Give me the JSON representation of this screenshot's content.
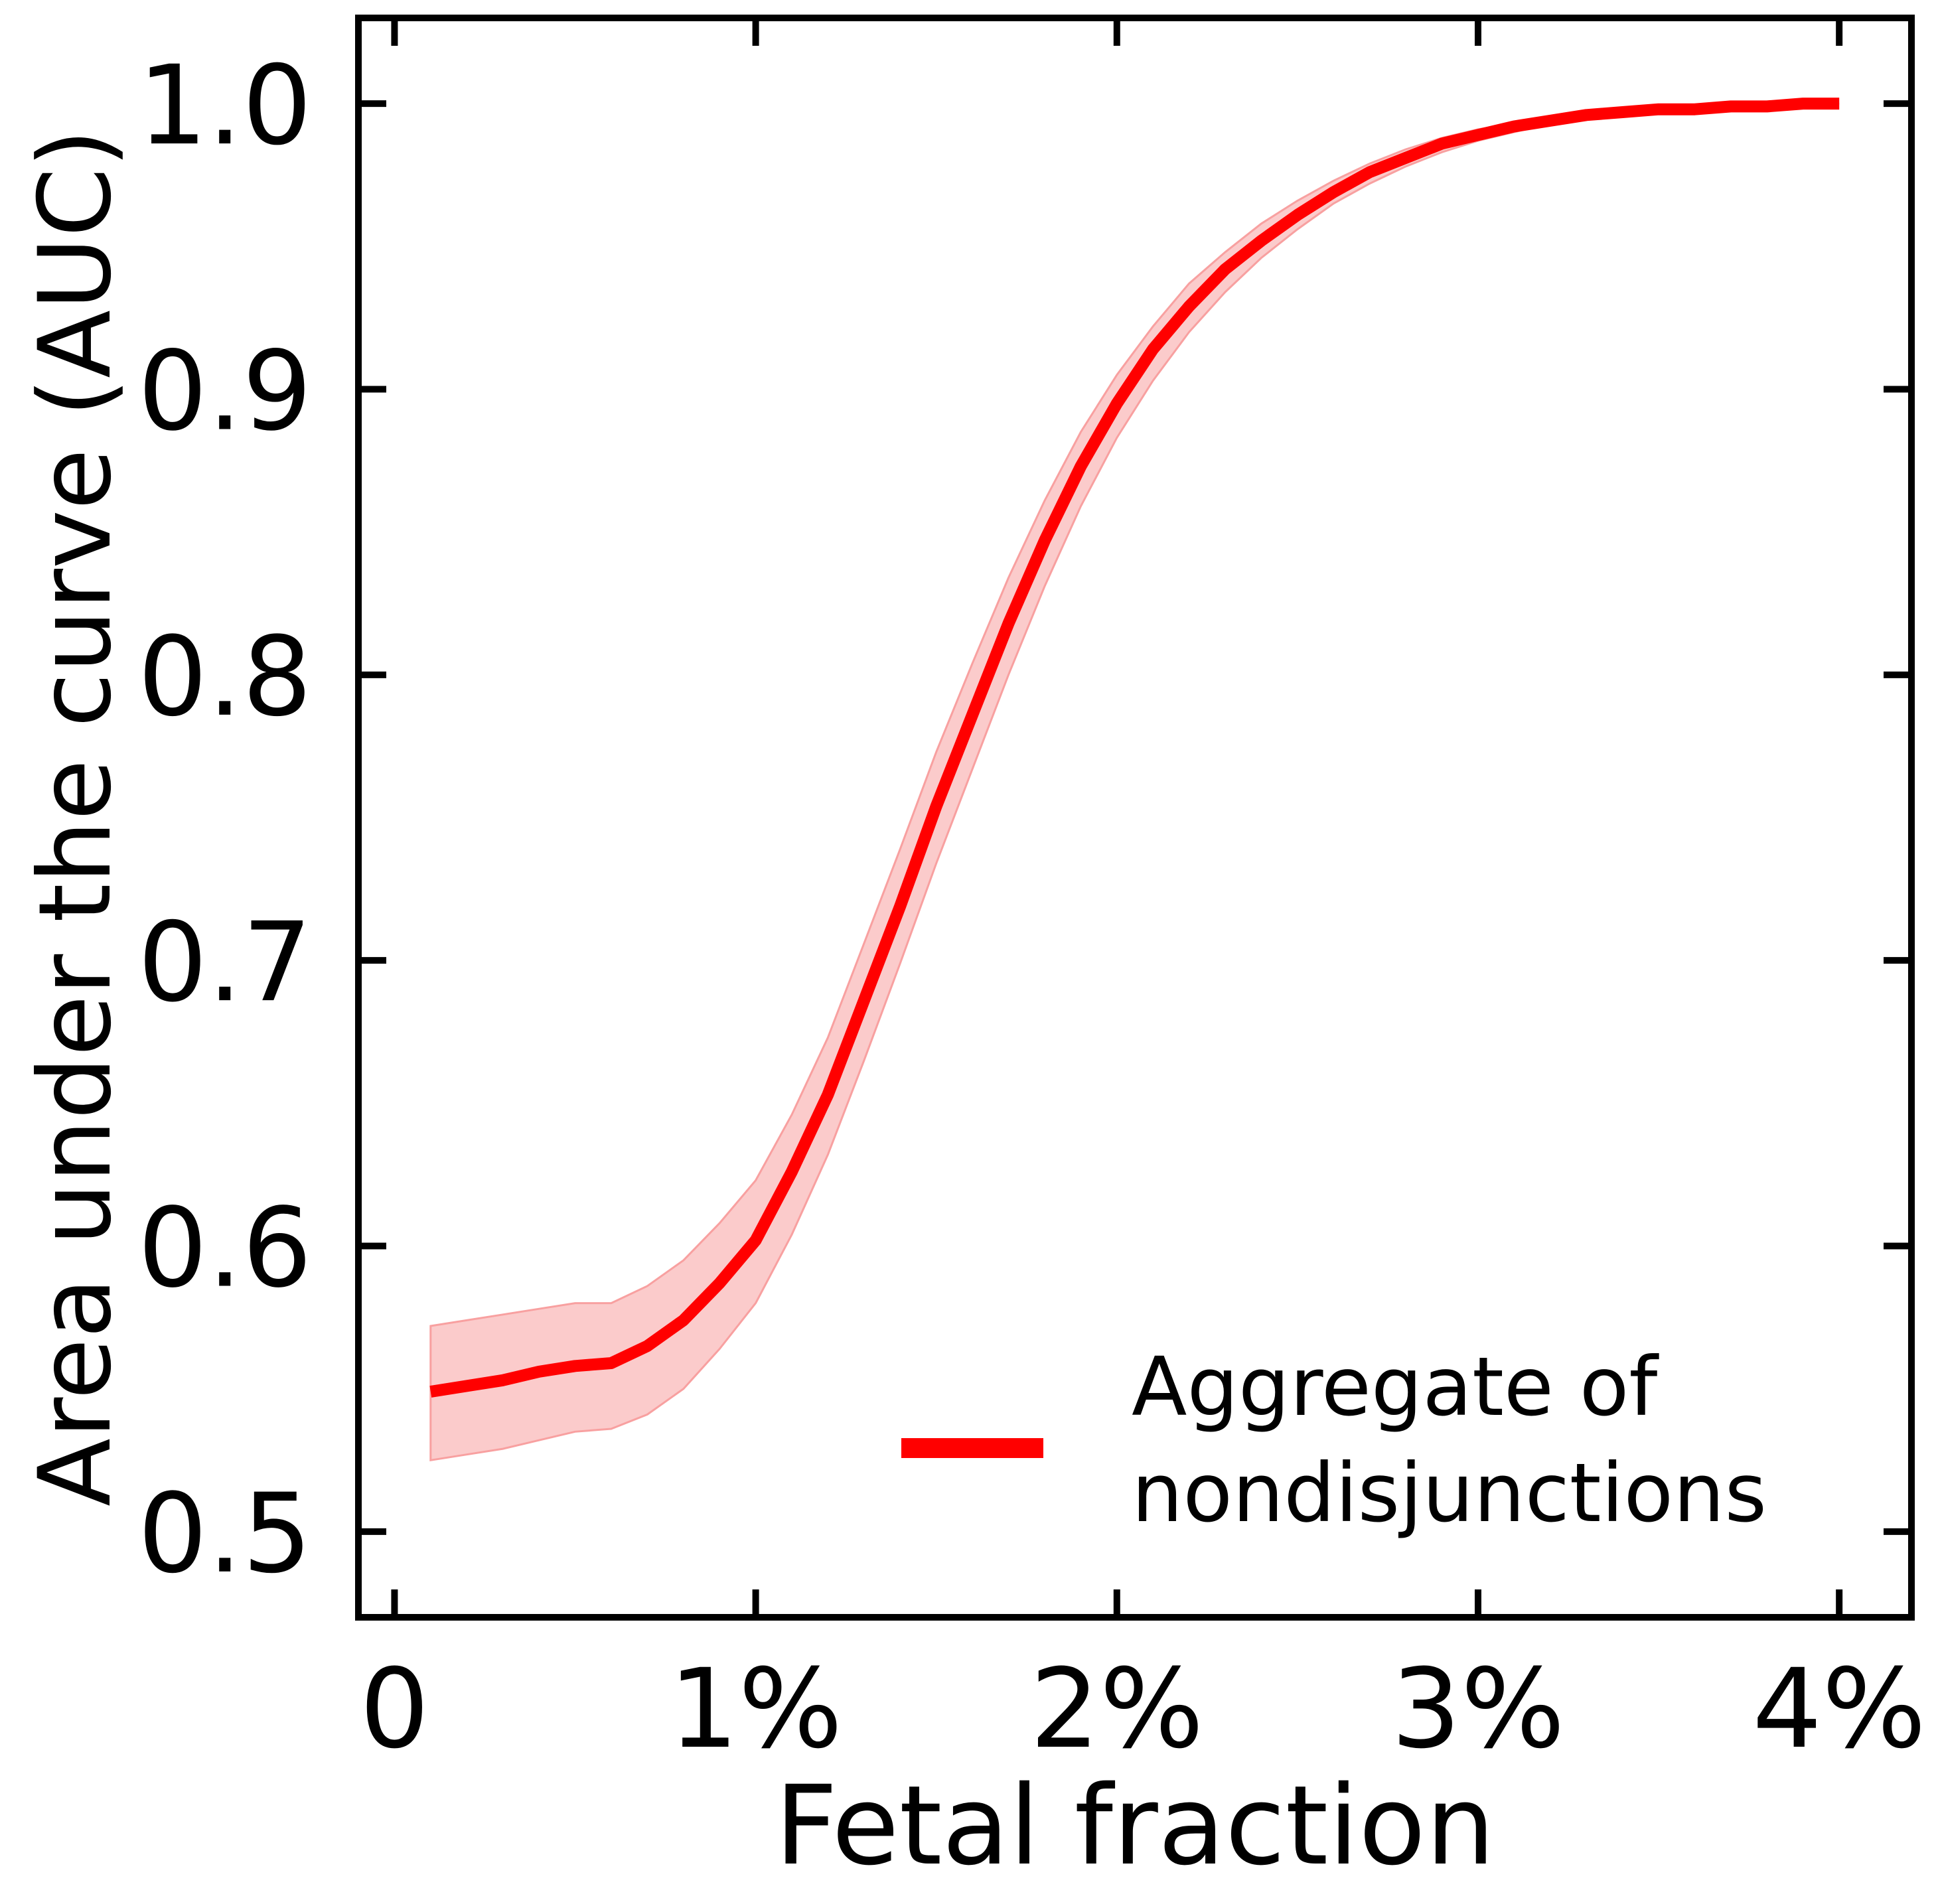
{
  "chart_data": {
    "type": "line",
    "title": "",
    "xlabel": "Fetal fraction",
    "ylabel": "Area under the curve (AUC)",
    "xlim": [
      -0.1,
      4.2
    ],
    "ylim": [
      0.47,
      1.03
    ],
    "xticks": [
      0,
      1,
      2,
      3,
      4
    ],
    "xtick_labels": [
      "0",
      "1%",
      "2%",
      "3%",
      "4%"
    ],
    "yticks": [
      0.5,
      0.6,
      0.7,
      0.8,
      0.9,
      1.0
    ],
    "ytick_labels": [
      "0.5",
      "0.6",
      "0.7",
      "0.8",
      "0.9",
      "1.0"
    ],
    "grid": false,
    "legend_position": "bottom-right",
    "colors": {
      "line": "#ff0000",
      "band": "#f8a0a0",
      "axes": "#000000"
    },
    "series": [
      {
        "name": "Aggregate of nondisjunctions",
        "x": [
          0.1,
          0.2,
          0.3,
          0.4,
          0.5,
          0.6,
          0.7,
          0.8,
          0.9,
          1.0,
          1.1,
          1.2,
          1.3,
          1.4,
          1.5,
          1.6,
          1.7,
          1.8,
          1.9,
          2.0,
          2.1,
          2.2,
          2.3,
          2.4,
          2.5,
          2.6,
          2.7,
          2.8,
          2.9,
          3.0,
          3.1,
          3.2,
          3.3,
          3.4,
          3.5,
          3.6,
          3.7,
          3.8,
          3.9,
          4.0
        ],
        "values": [
          0.549,
          0.551,
          0.553,
          0.556,
          0.558,
          0.559,
          0.565,
          0.574,
          0.587,
          0.602,
          0.626,
          0.653,
          0.686,
          0.719,
          0.754,
          0.786,
          0.818,
          0.847,
          0.873,
          0.895,
          0.914,
          0.929,
          0.942,
          0.952,
          0.961,
          0.969,
          0.976,
          0.981,
          0.986,
          0.989,
          0.992,
          0.994,
          0.996,
          0.997,
          0.998,
          0.998,
          0.999,
          0.999,
          1.0,
          1.0
        ],
        "upper": [
          0.572,
          0.574,
          0.576,
          0.578,
          0.58,
          0.58,
          0.586,
          0.595,
          0.608,
          0.623,
          0.646,
          0.673,
          0.706,
          0.739,
          0.773,
          0.804,
          0.834,
          0.861,
          0.885,
          0.905,
          0.922,
          0.937,
          0.948,
          0.958,
          0.966,
          0.973,
          0.979,
          0.984,
          0.988,
          0.991,
          0.993,
          0.995,
          0.997,
          0.998,
          0.999,
          0.999,
          0.999,
          1.0,
          1.0,
          1.0
        ],
        "lower": [
          0.525,
          0.527,
          0.529,
          0.532,
          0.535,
          0.536,
          0.541,
          0.55,
          0.564,
          0.58,
          0.604,
          0.632,
          0.665,
          0.699,
          0.734,
          0.767,
          0.8,
          0.831,
          0.859,
          0.883,
          0.903,
          0.92,
          0.934,
          0.946,
          0.956,
          0.965,
          0.972,
          0.978,
          0.983,
          0.987,
          0.99,
          0.993,
          0.995,
          0.996,
          0.997,
          0.998,
          0.999,
          0.999,
          0.999,
          1.0
        ]
      }
    ]
  },
  "legend": {
    "entries": [
      {
        "line1": "Aggregate of",
        "line2": "nondisjunctions"
      }
    ]
  }
}
